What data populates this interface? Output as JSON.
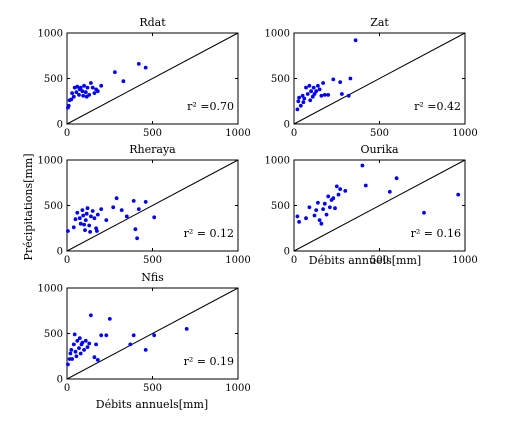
{
  "figure": {
    "ylabel": "Précipitations[mm]",
    "xlabel": "Débits annuels[mm]",
    "marker_color": "#0000ff"
  },
  "chart_data": [
    {
      "type": "scatter",
      "title": "Rdat",
      "annotation": "r² =0.70",
      "xlim": [
        0,
        1000
      ],
      "ylim": [
        0,
        1000
      ],
      "x_ticks": [
        "0",
        "500",
        "1000"
      ],
      "y_ticks": [
        "0",
        "500",
        "1000"
      ],
      "reference_line": "1:1",
      "points": [
        [
          5,
          180
        ],
        [
          10,
          200
        ],
        [
          15,
          260
        ],
        [
          25,
          270
        ],
        [
          30,
          340
        ],
        [
          40,
          300
        ],
        [
          45,
          400
        ],
        [
          55,
          350
        ],
        [
          60,
          410
        ],
        [
          70,
          320
        ],
        [
          75,
          380
        ],
        [
          80,
          400
        ],
        [
          90,
          360
        ],
        [
          95,
          310
        ],
        [
          100,
          420
        ],
        [
          110,
          350
        ],
        [
          115,
          300
        ],
        [
          120,
          400
        ],
        [
          130,
          320
        ],
        [
          140,
          450
        ],
        [
          150,
          400
        ],
        [
          160,
          340
        ],
        [
          170,
          380
        ],
        [
          180,
          360
        ],
        [
          200,
          420
        ],
        [
          280,
          570
        ],
        [
          330,
          470
        ],
        [
          420,
          660
        ],
        [
          460,
          620
        ]
      ]
    },
    {
      "type": "scatter",
      "title": "Zat",
      "annotation": "r² =0.42",
      "xlim": [
        0,
        1000
      ],
      "ylim": [
        0,
        1000
      ],
      "x_ticks": [
        "0",
        "500",
        "1000"
      ],
      "y_ticks": [
        "0",
        "500",
        "1000"
      ],
      "reference_line": "1:1",
      "points": [
        [
          20,
          160
        ],
        [
          25,
          250
        ],
        [
          30,
          290
        ],
        [
          40,
          200
        ],
        [
          50,
          310
        ],
        [
          55,
          240
        ],
        [
          60,
          280
        ],
        [
          70,
          400
        ],
        [
          80,
          330
        ],
        [
          90,
          420
        ],
        [
          95,
          260
        ],
        [
          100,
          360
        ],
        [
          110,
          300
        ],
        [
          115,
          400
        ],
        [
          120,
          330
        ],
        [
          130,
          360
        ],
        [
          140,
          420
        ],
        [
          150,
          380
        ],
        [
          160,
          310
        ],
        [
          170,
          450
        ],
        [
          180,
          320
        ],
        [
          200,
          320
        ],
        [
          230,
          490
        ],
        [
          270,
          460
        ],
        [
          280,
          330
        ],
        [
          320,
          310
        ],
        [
          330,
          500
        ],
        [
          360,
          920
        ]
      ]
    },
    {
      "type": "scatter",
      "title": "Rheraya",
      "annotation": "r² = 0.12",
      "xlim": [
        0,
        1000
      ],
      "ylim": [
        0,
        1000
      ],
      "x_ticks": [
        "0",
        "500",
        "1000"
      ],
      "y_ticks": [
        "0",
        "500",
        "1000"
      ],
      "reference_line": "1:1",
      "points": [
        [
          5,
          220
        ],
        [
          40,
          260
        ],
        [
          50,
          350
        ],
        [
          60,
          420
        ],
        [
          75,
          360
        ],
        [
          80,
          300
        ],
        [
          90,
          450
        ],
        [
          95,
          390
        ],
        [
          100,
          290
        ],
        [
          105,
          230
        ],
        [
          110,
          340
        ],
        [
          115,
          410
        ],
        [
          120,
          470
        ],
        [
          130,
          280
        ],
        [
          135,
          210
        ],
        [
          140,
          380
        ],
        [
          150,
          440
        ],
        [
          160,
          360
        ],
        [
          170,
          250
        ],
        [
          175,
          220
        ],
        [
          180,
          400
        ],
        [
          200,
          460
        ],
        [
          230,
          340
        ],
        [
          270,
          480
        ],
        [
          290,
          580
        ],
        [
          320,
          450
        ],
        [
          350,
          380
        ],
        [
          390,
          550
        ],
        [
          400,
          240
        ],
        [
          410,
          140
        ],
        [
          420,
          460
        ],
        [
          460,
          540
        ],
        [
          510,
          370
        ]
      ]
    },
    {
      "type": "scatter",
      "title": "Ourika",
      "annotation": "r² = 0.16",
      "xlim": [
        0,
        1000
      ],
      "ylim": [
        0,
        1000
      ],
      "x_ticks": [
        "0",
        "500",
        "1000"
      ],
      "y_ticks": [
        "0",
        "500",
        "1000"
      ],
      "reference_line": "1:1",
      "points": [
        [
          20,
          380
        ],
        [
          30,
          320
        ],
        [
          70,
          360
        ],
        [
          90,
          480
        ],
        [
          120,
          390
        ],
        [
          130,
          450
        ],
        [
          140,
          530
        ],
        [
          150,
          340
        ],
        [
          160,
          300
        ],
        [
          170,
          460
        ],
        [
          180,
          520
        ],
        [
          190,
          400
        ],
        [
          200,
          600
        ],
        [
          210,
          480
        ],
        [
          220,
          560
        ],
        [
          230,
          580
        ],
        [
          240,
          470
        ],
        [
          250,
          710
        ],
        [
          260,
          620
        ],
        [
          270,
          680
        ],
        [
          300,
          660
        ],
        [
          400,
          940
        ],
        [
          420,
          720
        ],
        [
          560,
          650
        ],
        [
          600,
          800
        ],
        [
          760,
          420
        ],
        [
          960,
          620
        ]
      ]
    },
    {
      "type": "scatter",
      "title": "Nfis",
      "annotation": "r² = 0.19",
      "xlim": [
        0,
        1000
      ],
      "ylim": [
        0,
        1000
      ],
      "x_ticks": [
        "0",
        "500",
        "1000"
      ],
      "y_ticks": [
        "0",
        "500",
        "1000"
      ],
      "reference_line": "1:1",
      "points": [
        [
          5,
          160
        ],
        [
          15,
          220
        ],
        [
          20,
          280
        ],
        [
          25,
          320
        ],
        [
          30,
          220
        ],
        [
          40,
          380
        ],
        [
          45,
          490
        ],
        [
          50,
          300
        ],
        [
          55,
          250
        ],
        [
          60,
          420
        ],
        [
          70,
          340
        ],
        [
          75,
          450
        ],
        [
          80,
          280
        ],
        [
          85,
          380
        ],
        [
          90,
          400
        ],
        [
          100,
          320
        ],
        [
          110,
          420
        ],
        [
          120,
          350
        ],
        [
          130,
          390
        ],
        [
          140,
          700
        ],
        [
          160,
          240
        ],
        [
          170,
          380
        ],
        [
          180,
          210
        ],
        [
          200,
          480
        ],
        [
          230,
          480
        ],
        [
          250,
          660
        ],
        [
          370,
          380
        ],
        [
          390,
          480
        ],
        [
          460,
          320
        ],
        [
          510,
          480
        ],
        [
          700,
          550
        ]
      ]
    }
  ]
}
